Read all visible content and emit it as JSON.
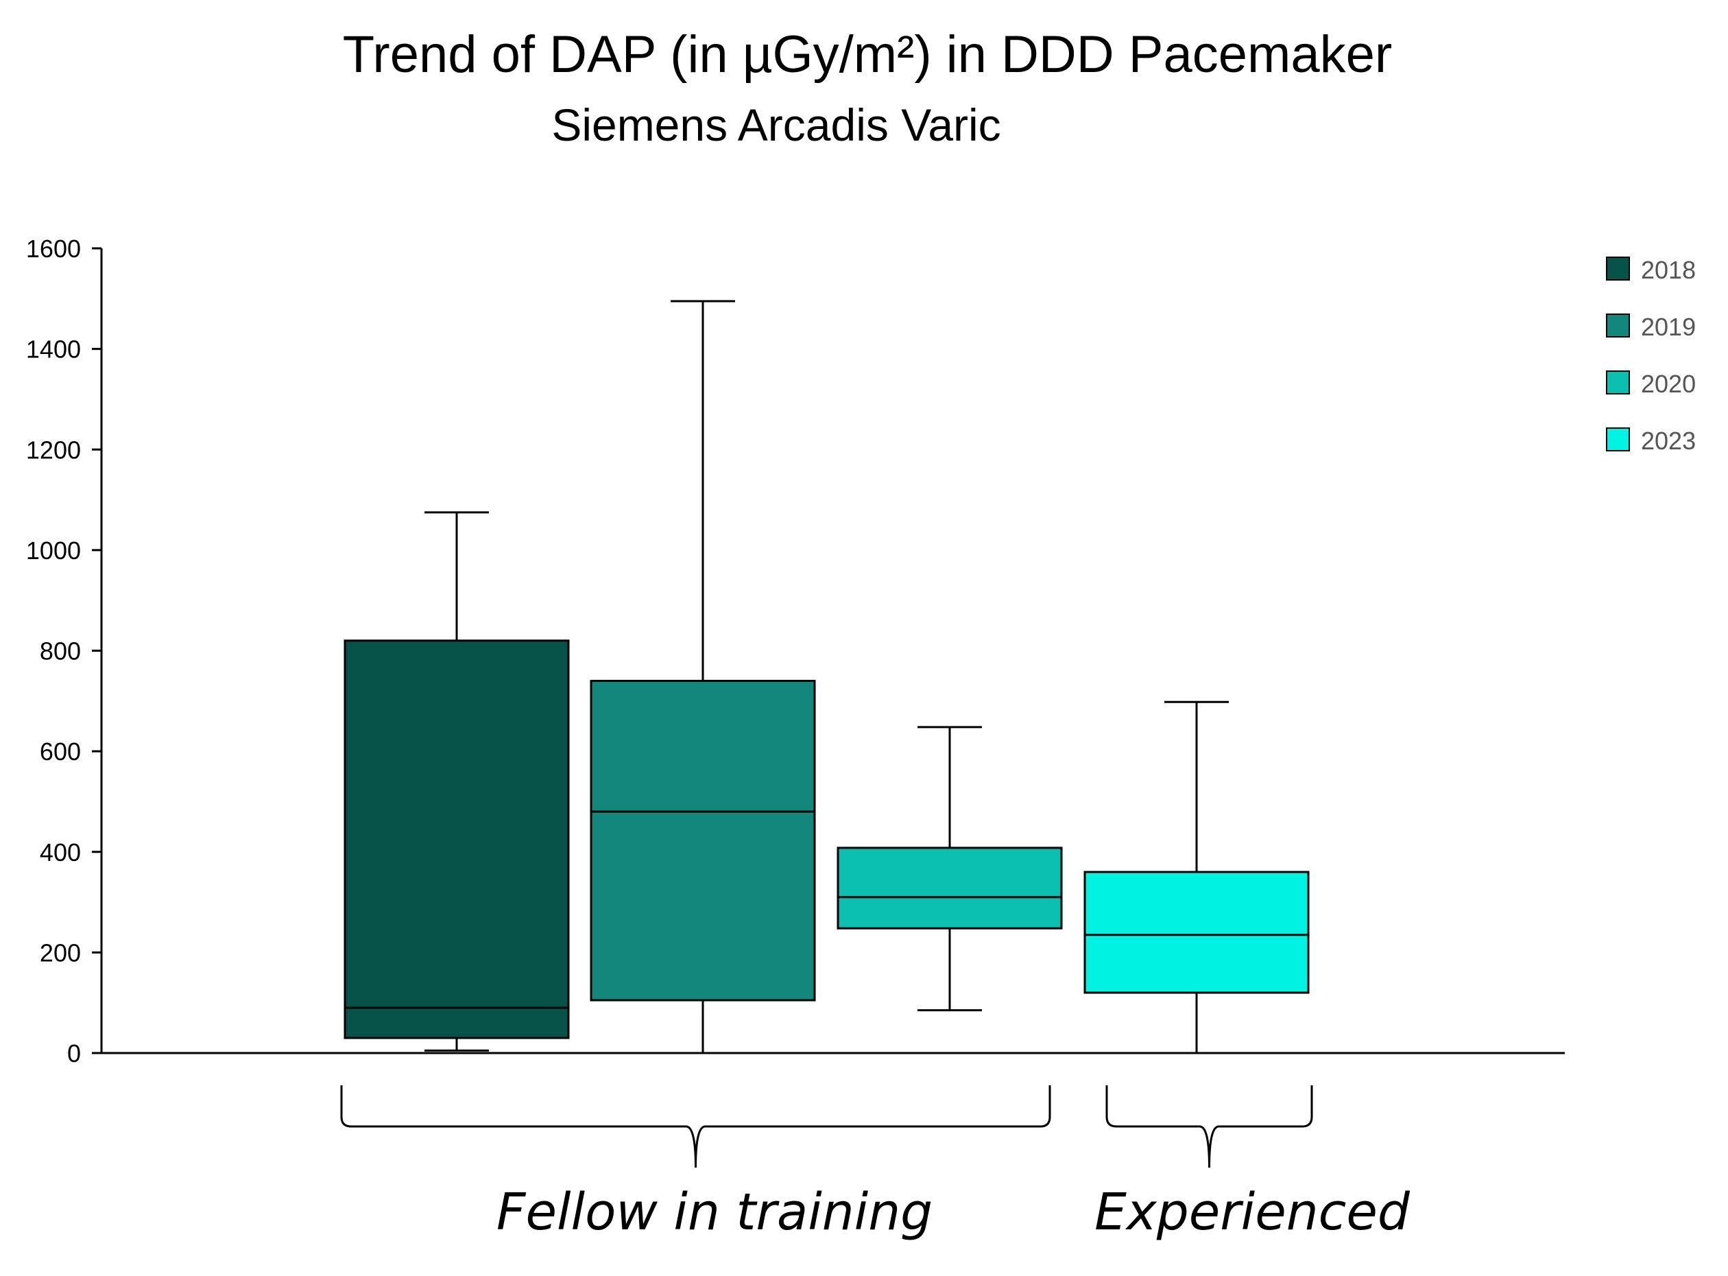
{
  "chart_data": {
    "type": "box",
    "title": "Trend of DAP (in µGy/m²) in DDD Pacemaker",
    "subtitle": "Siemens Arcadis Varic",
    "xlabel": "",
    "ylabel": "",
    "ylim": [
      0,
      1600
    ],
    "yticks": [
      "0",
      "200",
      "400",
      "600",
      "800",
      "1000",
      "1200",
      "1400",
      "1600"
    ],
    "grid": false,
    "legend_position": "top-right",
    "series": [
      {
        "name": "2018",
        "color": "#07534a",
        "min": 5,
        "q1": 30,
        "median": 90,
        "q3": 820,
        "max": 1075
      },
      {
        "name": "2019",
        "color": "#13877c",
        "min": 0,
        "q1": 105,
        "median": 480,
        "q3": 740,
        "max": 1495
      },
      {
        "name": "2020",
        "color": "#0abfb0",
        "min": 85,
        "q1": 248,
        "median": 310,
        "q3": 408,
        "max": 648
      },
      {
        "name": "2023",
        "color": "#00f2e3",
        "min": 0,
        "q1": 120,
        "median": 235,
        "q3": 360,
        "max": 698
      }
    ],
    "groups": [
      {
        "label": "Fellow in training",
        "members": [
          "2018",
          "2019",
          "2020"
        ]
      },
      {
        "label": "Experienced",
        "members": [
          "2023"
        ]
      }
    ]
  }
}
